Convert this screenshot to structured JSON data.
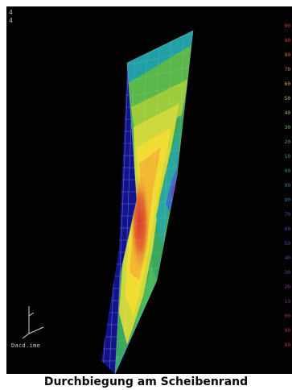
{
  "caption": "Durchbiegung am Scheibenrand",
  "viewport": {
    "corner_marks": [
      "4",
      "4"
    ],
    "axis_label": "Dacd.ime",
    "legend_ticks": [
      "00",
      "90",
      "80",
      "70",
      "60",
      "50",
      "40",
      "30",
      "20",
      "10",
      "00",
      "90",
      "80",
      "70",
      "60",
      "50",
      "40",
      "30",
      "20",
      "10",
      "00",
      "90",
      "80"
    ],
    "legend_colors": [
      "#d23a2a",
      "#d84a2a",
      "#e06a2a",
      "#e08a30",
      "#d8b040",
      "#b8c050",
      "#90c850",
      "#60c060",
      "#40b070",
      "#30a088",
      "#2a9090",
      "#2a80a0",
      "#2a70b0",
      "#3a5ab8",
      "#4a4ab8",
      "#5a4ab0",
      "#6a40a8",
      "#7a38a0",
      "#8a3090",
      "#9a2a80",
      "#aa2a70",
      "#ba2a60",
      "#ca2a50"
    ]
  },
  "colors": {
    "background": "#020202",
    "mesh_blue": "#2a2ad0",
    "mesh_light": "#9aa0e0"
  }
}
